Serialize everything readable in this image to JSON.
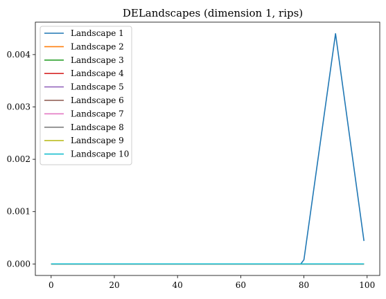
{
  "chart_data": {
    "type": "line",
    "title": "DELandscapes (dimension 1, rips)",
    "xlabel": "",
    "ylabel": "",
    "xlim": [
      -5,
      104
    ],
    "ylim": [
      -0.00022,
      0.00462
    ],
    "x_ticks": [
      0,
      20,
      40,
      60,
      80,
      100
    ],
    "x_tick_labels": [
      "0",
      "20",
      "40",
      "60",
      "80",
      "100"
    ],
    "y_ticks": [
      0,
      0.001,
      0.002,
      0.003,
      0.004
    ],
    "y_tick_labels": [
      "0.000",
      "0.001",
      "0.002",
      "0.003",
      "0.004"
    ],
    "grid": false,
    "legend_position": "upper-left",
    "series": [
      {
        "name": "Landscape 1",
        "color": "#1f77b4",
        "x": [
          0,
          79,
          80,
          90,
          99
        ],
        "y": [
          0,
          0,
          8e-05,
          0.0044,
          0.00044
        ]
      },
      {
        "name": "Landscape 2",
        "color": "#ff7f0e",
        "x": [
          0,
          99
        ],
        "y": [
          0,
          0
        ]
      },
      {
        "name": "Landscape 3",
        "color": "#2ca02c",
        "x": [
          0,
          99
        ],
        "y": [
          0,
          0
        ]
      },
      {
        "name": "Landscape 4",
        "color": "#d62728",
        "x": [
          0,
          99
        ],
        "y": [
          0,
          0
        ]
      },
      {
        "name": "Landscape 5",
        "color": "#9467bd",
        "x": [
          0,
          99
        ],
        "y": [
          0,
          0
        ]
      },
      {
        "name": "Landscape 6",
        "color": "#8c564b",
        "x": [
          0,
          99
        ],
        "y": [
          0,
          0
        ]
      },
      {
        "name": "Landscape 7",
        "color": "#e377c2",
        "x": [
          0,
          99
        ],
        "y": [
          0,
          0
        ]
      },
      {
        "name": "Landscape 8",
        "color": "#7f7f7f",
        "x": [
          0,
          99
        ],
        "y": [
          0,
          0
        ]
      },
      {
        "name": "Landscape 9",
        "color": "#bcbd22",
        "x": [
          0,
          99
        ],
        "y": [
          0,
          0
        ]
      },
      {
        "name": "Landscape 10",
        "color": "#17becf",
        "x": [
          0,
          99
        ],
        "y": [
          0,
          0
        ]
      }
    ]
  }
}
